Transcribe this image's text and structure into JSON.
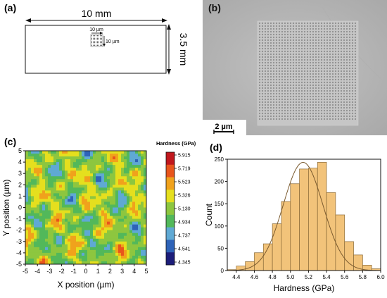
{
  "panels": {
    "a": "(a)",
    "b": "(b)",
    "c": "(c)",
    "d": "(d)"
  },
  "schematic": {
    "length_label": "10 mm",
    "width_label": "3.5 mm",
    "grid_width_label": "10 µm",
    "grid_height_label": "10 µm"
  },
  "sem": {
    "scale_bar_label": "2 µm"
  },
  "colors": {
    "bar_fill": "#f2c37a",
    "bar_stroke": "#8a6a38",
    "fit_curve": "#7a5a2e",
    "sem_background": "#b9b9b9"
  },
  "chart_data": [
    {
      "type": "heatmap",
      "title": "",
      "xlabel": "X position (µm)",
      "ylabel": "Y position (µm)",
      "xlim": [
        -5,
        5
      ],
      "ylim": [
        -5,
        5
      ],
      "xticks": [
        "-5",
        "-4",
        "-3",
        "-2",
        "-1",
        "0",
        "1",
        "2",
        "3",
        "4",
        "5"
      ],
      "yticks": [
        "-5",
        "-4",
        "-3",
        "-2",
        "-1",
        "0",
        "1",
        "2",
        "3",
        "4",
        "5"
      ],
      "colorbar_title": "Hardness (GPa)",
      "colorbar_levels": [
        "5.915",
        "5.719",
        "5.523",
        "5.326",
        "5.130",
        "4.934",
        "4.737",
        "4.541",
        "4.345"
      ],
      "colorbar_colors": [
        "#c0171d",
        "#e8551c",
        "#f0a21c",
        "#e5df1e",
        "#8dc63f",
        "#52b85a",
        "#5fa9d4",
        "#2e63b8",
        "#1c1d7a"
      ],
      "legend_position": "right"
    },
    {
      "type": "bar",
      "title": "",
      "xlabel": "Hardness (GPa)",
      "ylabel": "Count",
      "xlim": [
        4.3,
        6.0
      ],
      "ylim": [
        0,
        250
      ],
      "xticks": [
        "4.4",
        "4.6",
        "4.8",
        "5.0",
        "5.2",
        "5.4",
        "5.6",
        "5.8",
        "6.0"
      ],
      "yticks": [
        "0",
        "50",
        "100",
        "150",
        "200",
        "250"
      ],
      "bin_width": 0.1,
      "bin_left_edges": [
        4.3,
        4.4,
        4.5,
        4.6,
        4.7,
        4.8,
        4.9,
        5.0,
        5.1,
        5.2,
        5.3,
        5.4,
        5.5,
        5.6,
        5.7,
        5.8,
        5.9
      ],
      "values": [
        2,
        10,
        20,
        40,
        60,
        105,
        155,
        195,
        228,
        230,
        243,
        175,
        125,
        65,
        35,
        12,
        4
      ],
      "fit": {
        "type": "normal",
        "mean": 5.14,
        "peak": 243,
        "sigma": 0.22
      }
    }
  ]
}
